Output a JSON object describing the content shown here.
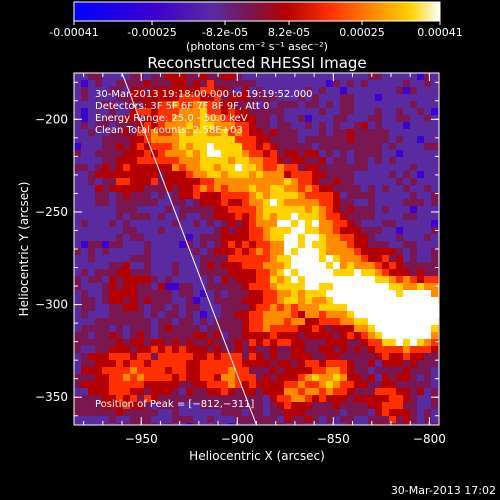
{
  "colorbar": {
    "ticks": [
      "-0.00041",
      "-0.00025",
      "-8.2e-05",
      "8.2e-05",
      "0.00025",
      "0.00041"
    ],
    "units": "(photons cm⁻² s⁻¹ asec⁻²)",
    "min": -0.00041,
    "max": 0.00041
  },
  "chart_data": {
    "type": "heatmap",
    "title": "Reconstructed RHESSI Image",
    "xlabel": "Heliocentric X (arcsec)",
    "ylabel": "Heliocentric Y (arcsec)",
    "xlim": [
      -985,
      -795
    ],
    "ylim": [
      -365,
      -175
    ],
    "xticks": [
      -950,
      -900,
      -850,
      -800
    ],
    "yticks": [
      -200,
      -250,
      -300,
      -350
    ],
    "xtick_labels": [
      "−950",
      "−900",
      "−850",
      "−800"
    ],
    "ytick_labels": [
      "−200",
      "−250",
      "−300",
      "−350"
    ],
    "peak": {
      "x": -812,
      "y": -311
    },
    "limb_line": [
      {
        "x": -960,
        "y": -175
      },
      {
        "x": -890,
        "y": -365
      }
    ],
    "colormap": [
      "#0000ff",
      "#3c00d0",
      "#5a2aa0",
      "#7a1650",
      "#b40000",
      "#ff3000",
      "#ff8c00",
      "#ffd200",
      "#ffffff"
    ],
    "overlay_lines": [
      "30-Mar-2013 19:18:00.000 to 19:19:52.000",
      "Detectors: 3F 5F 6F 7F 8F 9F, Att 0",
      "Energy Range: 25.0 - 50.0 keV",
      "Clean    Total counts: 2.58E+03"
    ],
    "peak_label": "Position of Peak = [−812,−311]"
  },
  "footer": {
    "timestamp": "30-Mar-2013 17:02"
  }
}
